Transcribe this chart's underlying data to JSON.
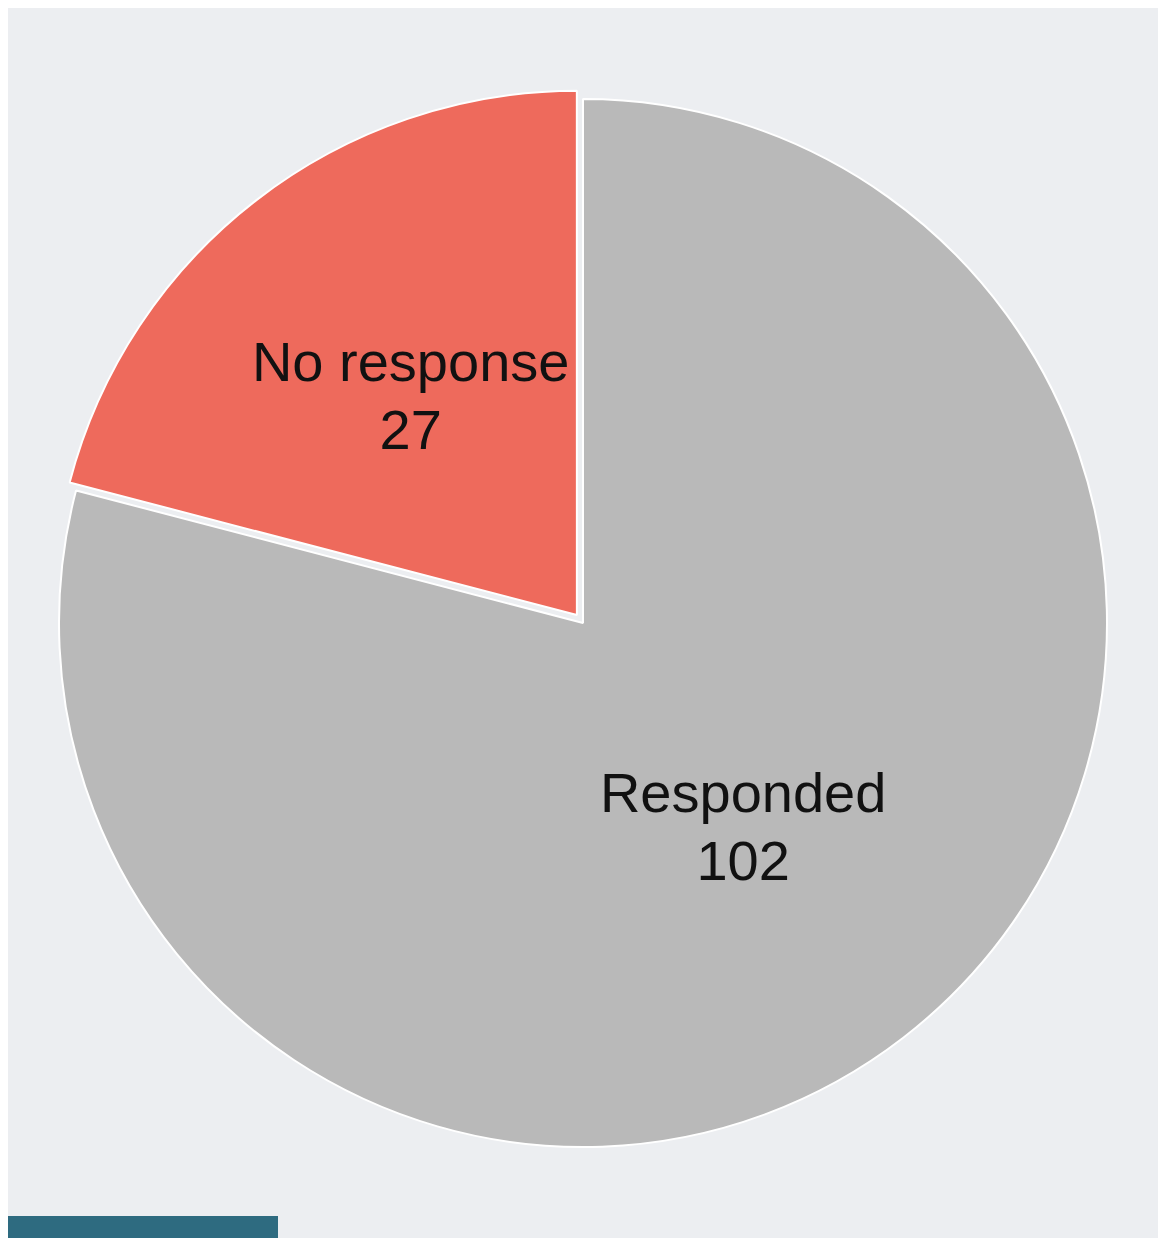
{
  "chart_data": {
    "type": "pie",
    "categories": [
      "Responded",
      "No response"
    ],
    "values": [
      102,
      27
    ],
    "colors": [
      "#b9b9b9",
      "#ee6a5c"
    ],
    "data_labels": true
  }
}
